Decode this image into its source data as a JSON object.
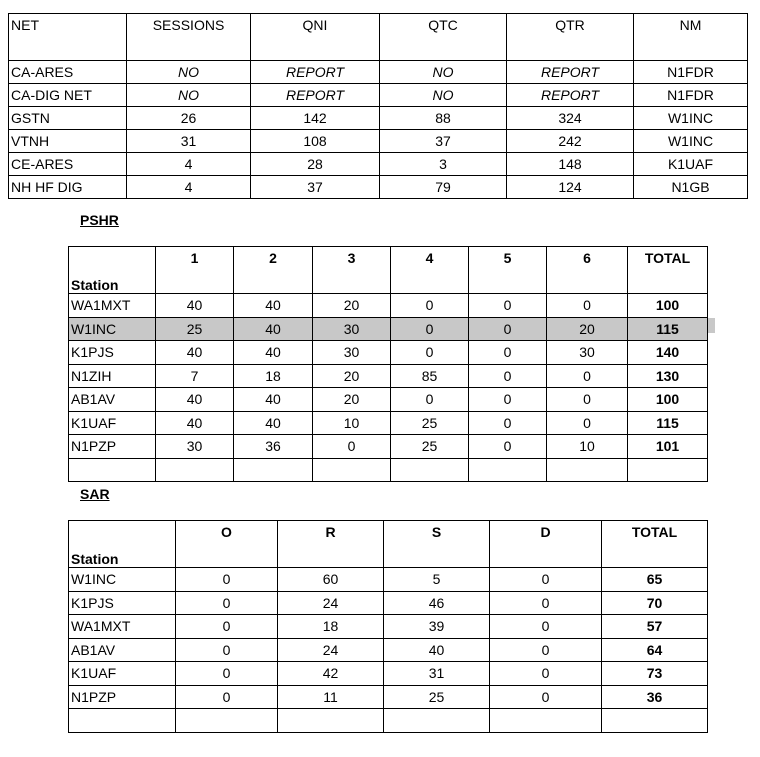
{
  "net_table": {
    "headers": [
      "NET",
      "SESSIONS",
      "QNI",
      "QTC",
      "QTR",
      "NM"
    ],
    "rows": [
      [
        "CA-ARES",
        "NO",
        "REPORT",
        "NO",
        "REPORT",
        "N1FDR"
      ],
      [
        "CA-DIG NET",
        "NO",
        "REPORT",
        "NO",
        "REPORT",
        "N1FDR"
      ],
      [
        "GSTN",
        "26",
        "142",
        "88",
        "324",
        "W1INC"
      ],
      [
        "VTNH",
        "31",
        "108",
        "37",
        "242",
        "W1INC"
      ],
      [
        "CE-ARES",
        "4",
        "28",
        "3",
        "148",
        "K1UAF"
      ],
      [
        "NH HF DIG",
        "4",
        "37",
        "79",
        "124",
        "N1GB"
      ]
    ]
  },
  "pshr": {
    "title": "PSHR",
    "headers": [
      "Station",
      "1",
      "2",
      "3",
      "4",
      "5",
      "6",
      "TOTAL"
    ],
    "highlight_row": "W1INC",
    "rows": [
      [
        "WA1MXT",
        "40",
        "40",
        "20",
        "0",
        "0",
        "0",
        "100"
      ],
      [
        "W1INC",
        "25",
        "40",
        "30",
        "0",
        "0",
        "20",
        "115"
      ],
      [
        "K1PJS",
        "40",
        "40",
        "30",
        "0",
        "0",
        "30",
        "140"
      ],
      [
        "N1ZIH",
        "7",
        "18",
        "20",
        "85",
        "0",
        "0",
        "130"
      ],
      [
        "AB1AV",
        "40",
        "40",
        "20",
        "0",
        "0",
        "0",
        "100"
      ],
      [
        "K1UAF",
        "40",
        "40",
        "10",
        "25",
        "0",
        "0",
        "115"
      ],
      [
        "N1PZP",
        "30",
        "36",
        "0",
        "25",
        "0",
        "10",
        "101"
      ]
    ]
  },
  "sar": {
    "title": "SAR",
    "headers": [
      "Station",
      "O",
      "R",
      "S",
      "D",
      "TOTAL"
    ],
    "rows": [
      [
        "W1INC",
        "0",
        "60",
        "5",
        "0",
        "65"
      ],
      [
        "K1PJS",
        "0",
        "24",
        "46",
        "0",
        "70"
      ],
      [
        "WA1MXT",
        "0",
        "18",
        "39",
        "0",
        "57"
      ],
      [
        "AB1AV",
        "0",
        "24",
        "40",
        "0",
        "64"
      ],
      [
        "K1UAF",
        "0",
        "42",
        "31",
        "0",
        "73"
      ],
      [
        "N1PZP",
        "0",
        "11",
        "25",
        "0",
        "36"
      ]
    ]
  }
}
